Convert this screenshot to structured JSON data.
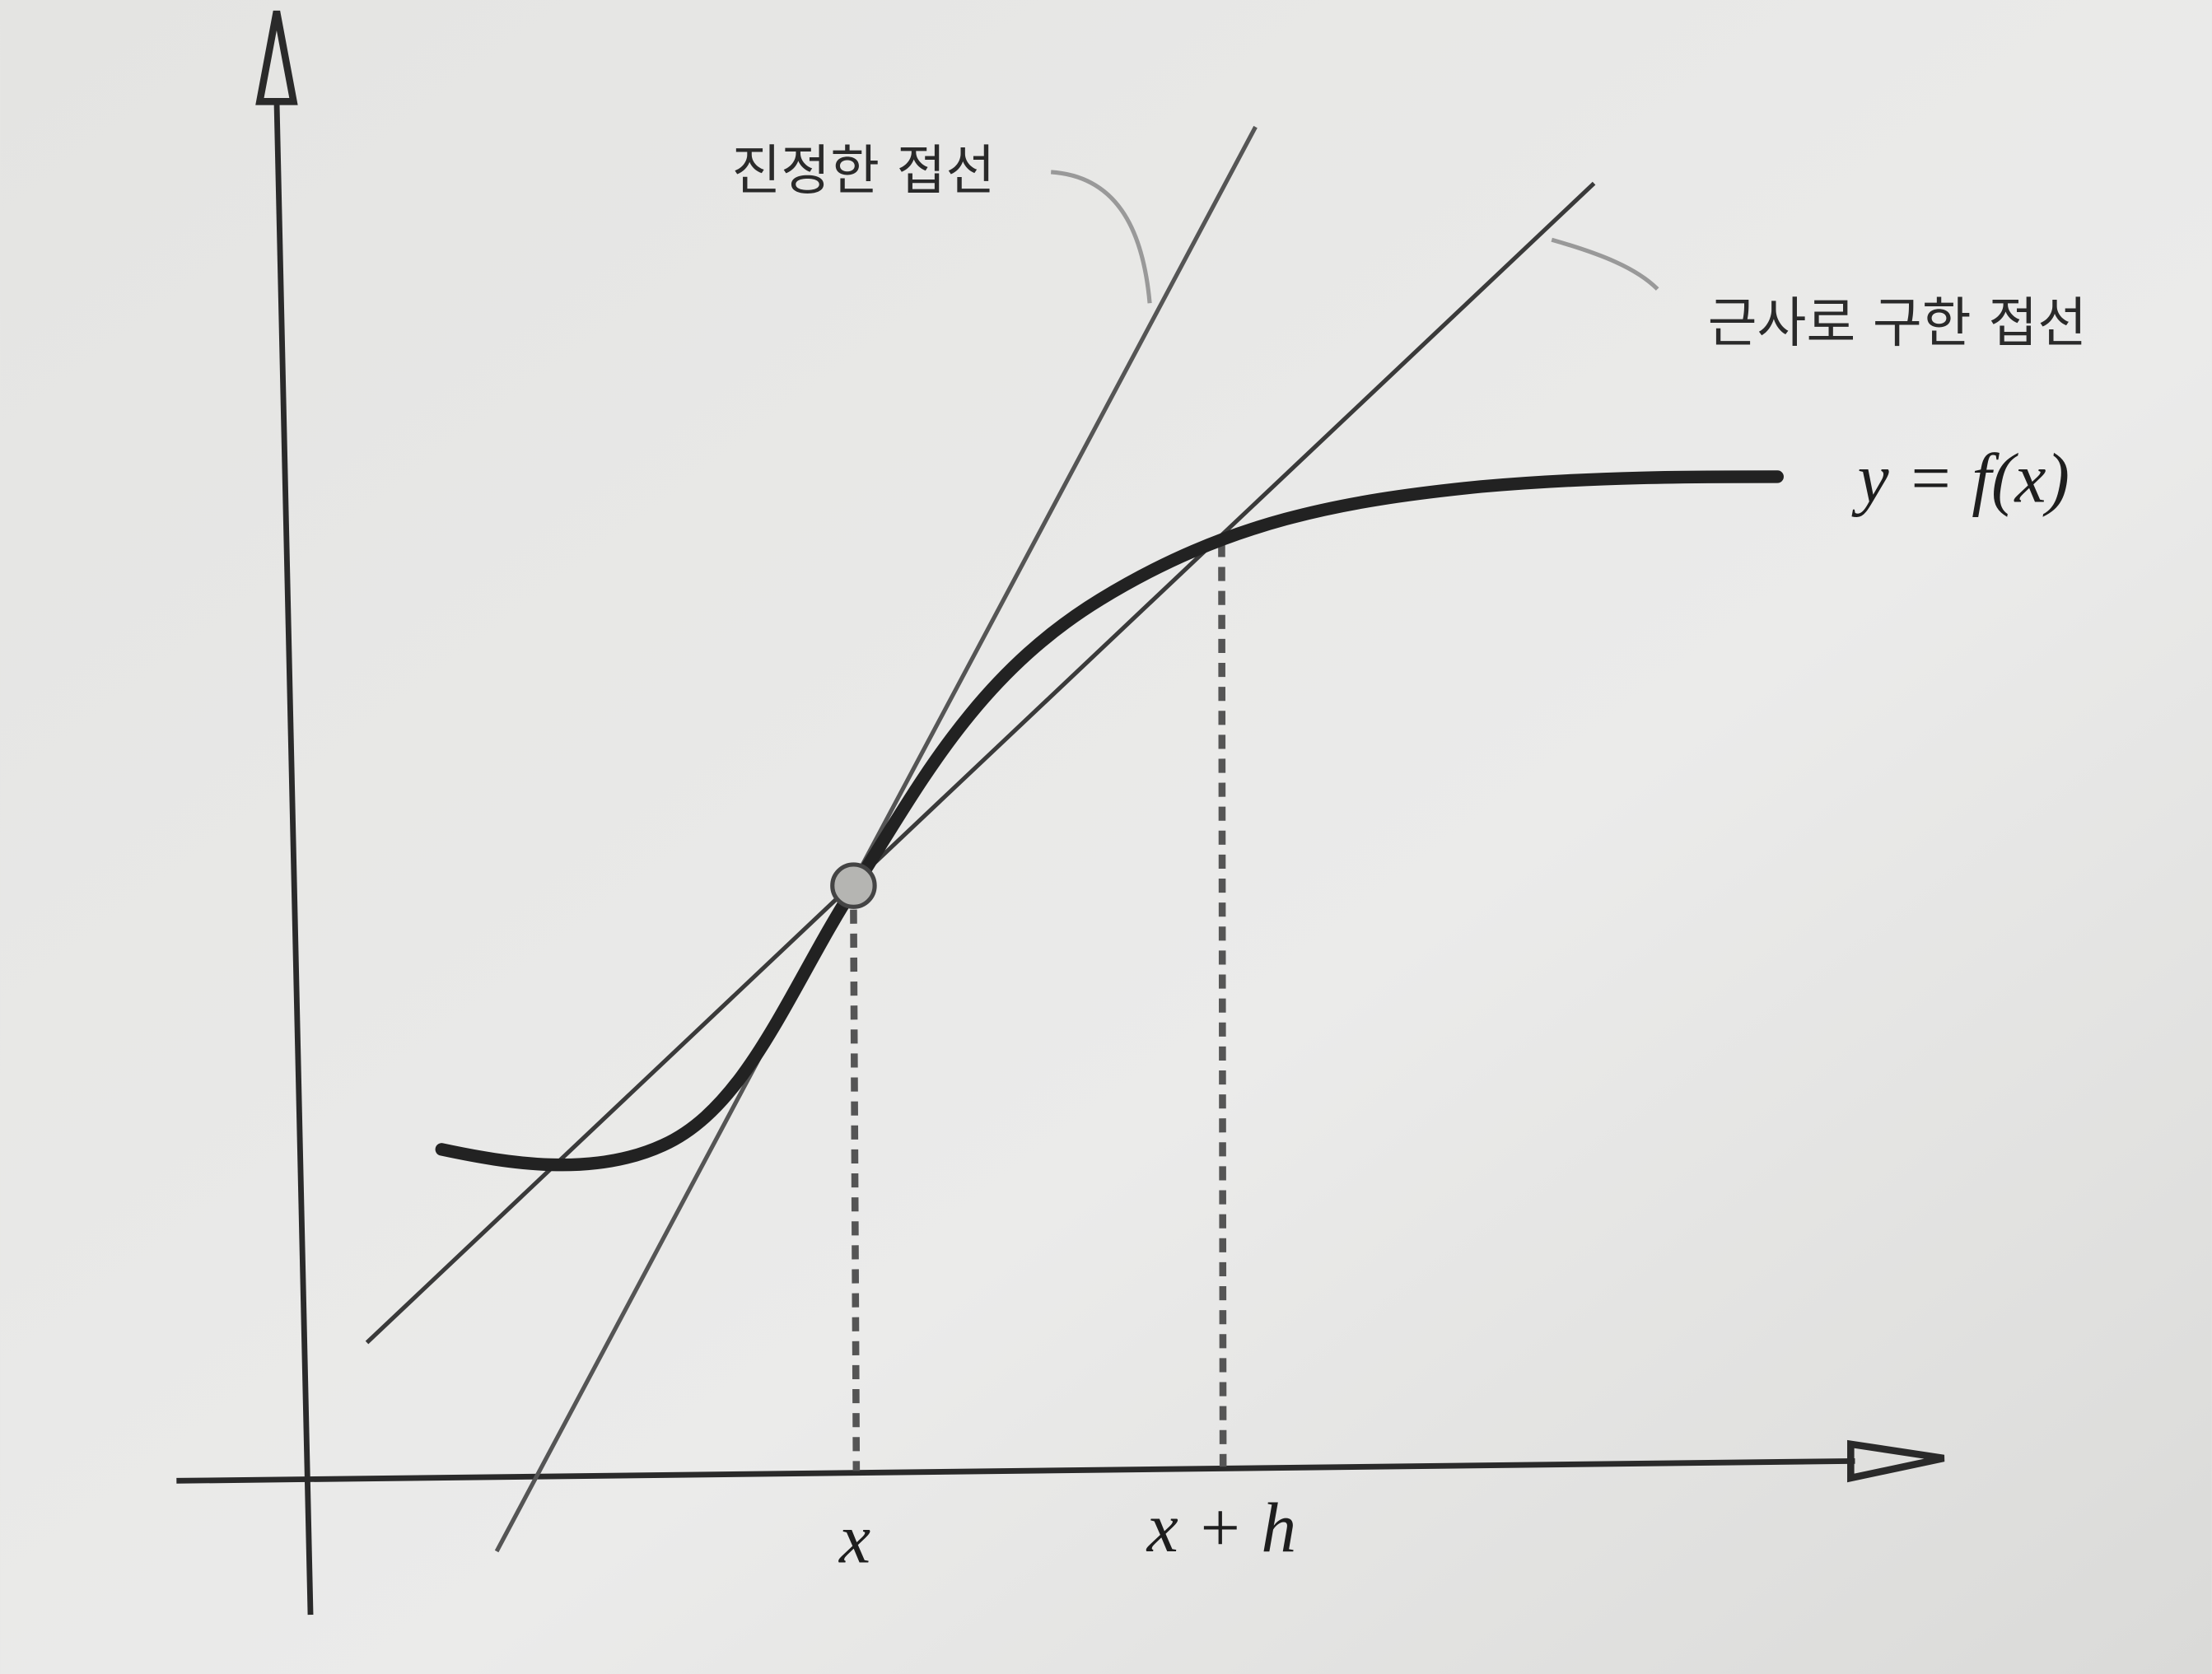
{
  "labels": {
    "true_tangent": "진정한 접선",
    "approx_tangent": "근사로 구한 접선",
    "curve": "y = f(x)",
    "x_label": "x",
    "xh_label": "x + h"
  }
}
